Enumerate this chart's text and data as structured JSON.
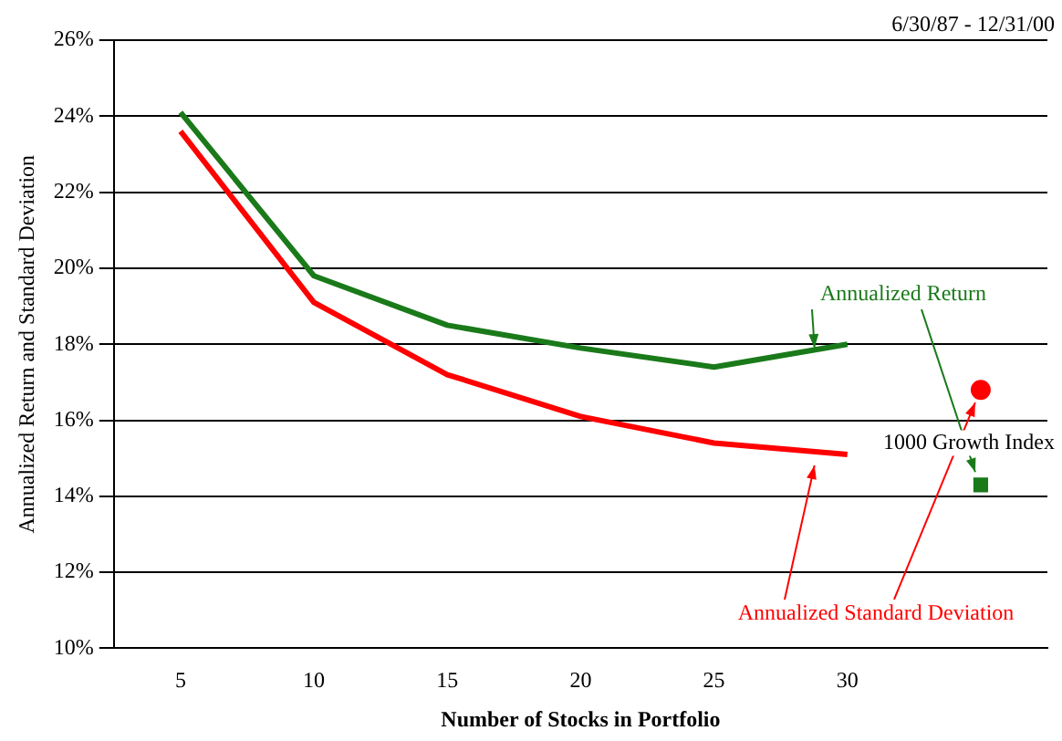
{
  "chart_data": {
    "type": "line",
    "xlabel": "Number of Stocks in Portfolio",
    "ylabel": "Annualized Return and Standard Deviation",
    "categories": [
      "5",
      "10",
      "15",
      "20",
      "25",
      "30",
      null
    ],
    "series": [
      {
        "name": "Annualized Return",
        "color": "#1a7a1a",
        "values": [
          24.1,
          19.8,
          18.5,
          17.9,
          17.4,
          18.0,
          null
        ]
      },
      {
        "name": "Annualized Standard Deviation",
        "color": "#ff0000",
        "values": [
          23.6,
          19.1,
          17.2,
          16.1,
          15.4,
          15.1,
          null
        ]
      },
      {
        "type": "scatter",
        "color": "#1a7a1a",
        "marker": "square",
        "values": [
          null,
          null,
          null,
          null,
          null,
          null,
          14.3
        ]
      },
      {
        "type": "scatter",
        "color": "#ff0000",
        "marker": "circle",
        "values": [
          null,
          null,
          null,
          null,
          null,
          null,
          16.8
        ]
      }
    ],
    "ylim": [
      10,
      26
    ],
    "yticks": [
      {
        "value": 10,
        "label": "10%"
      },
      {
        "value": 12,
        "label": "12%"
      },
      {
        "value": 14,
        "label": "14%"
      },
      {
        "value": 16,
        "label": "16%"
      },
      {
        "value": 18,
        "label": "18%"
      },
      {
        "value": 20,
        "label": "20%"
      },
      {
        "value": 22,
        "label": "22%"
      },
      {
        "value": 24,
        "label": "24%"
      },
      {
        "value": 26,
        "label": "26%"
      }
    ],
    "grid": "y",
    "legend": false,
    "marker": "none",
    "annotations": [
      "6/30/87 - 12/31/00",
      "1000 Growth Index"
    ]
  }
}
